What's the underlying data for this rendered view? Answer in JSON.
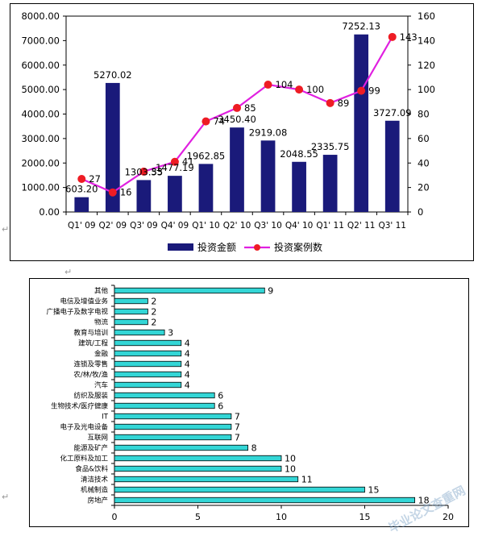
{
  "chart_data": [
    {
      "type": "bar+line",
      "categories": [
        "Q1' 09",
        "Q2' 09",
        "Q3' 09",
        "Q4' 09",
        "Q1' 10",
        "Q2' 10",
        "Q3' 10",
        "Q4' 10",
        "Q1' 11",
        "Q2' 11",
        "Q3' 11"
      ],
      "series": [
        {
          "name": "投资金额",
          "type": "bar",
          "axis": "left",
          "color": "#1a1a7a",
          "values": [
            603.2,
            5270.02,
            1303.55,
            1477.19,
            1962.85,
            3450.4,
            2919.08,
            2048.55,
            2335.75,
            7252.13,
            3727.09
          ],
          "labels": [
            "603.20",
            "5270.02",
            "1303.55",
            "1477.19",
            "1962.85",
            "3450.40",
            "2919.08",
            "2048.55",
            "2335.75",
            "7252.13",
            "3727.09"
          ]
        },
        {
          "name": "投资案例数",
          "type": "line",
          "axis": "right",
          "color": "#e020e0",
          "marker_color": "#ee1c24",
          "values": [
            27,
            16,
            33,
            41,
            74,
            85,
            104,
            100,
            89,
            99,
            143
          ],
          "labels": [
            "27",
            "16",
            "33",
            "41",
            "74",
            "85",
            "104",
            "100",
            "89",
            "99",
            "143"
          ]
        }
      ],
      "y_left": {
        "ticks": [
          "0.00",
          "1000.00",
          "2000.00",
          "3000.00",
          "4000.00",
          "5000.00",
          "6000.00",
          "7000.00",
          "8000.00"
        ],
        "lim": [
          0,
          8000
        ]
      },
      "y_right": {
        "ticks": [
          "0",
          "20",
          "40",
          "60",
          "80",
          "100",
          "120",
          "140",
          "160"
        ],
        "lim": [
          0,
          160
        ]
      },
      "legend": "bottom"
    },
    {
      "type": "bar",
      "orientation": "horizontal",
      "color": "#33d6d6",
      "categories": [
        "其他",
        "电信及增值业务",
        "广播电子及数字电视",
        "物流",
        "教育与培训",
        "建筑/工程",
        "金融",
        "连锁及零售",
        "农/林/牧/渔",
        "汽车",
        "纺织及服装",
        "生物技术/医疗健康",
        "IT",
        "电子及光电设备",
        "互联网",
        "能源及矿产",
        "化工原料及加工",
        "食品&饮料",
        "清洁技术",
        "机械制造",
        "房地产"
      ],
      "values": [
        9,
        2,
        2,
        2,
        3,
        4,
        4,
        4,
        4,
        4,
        6,
        6,
        7,
        7,
        7,
        8,
        10,
        10,
        11,
        15,
        18
      ],
      "labels": [
        "9",
        "2",
        "2",
        "2",
        "3",
        "4",
        "4",
        "4",
        "4",
        "4",
        "6",
        "6",
        "7",
        "7",
        "7",
        "8",
        "10",
        "10",
        "11",
        "15",
        "18"
      ],
      "x_ticks": [
        "0",
        "5",
        "10",
        "15",
        "20"
      ],
      "xlim": [
        0,
        20
      ]
    }
  ]
}
